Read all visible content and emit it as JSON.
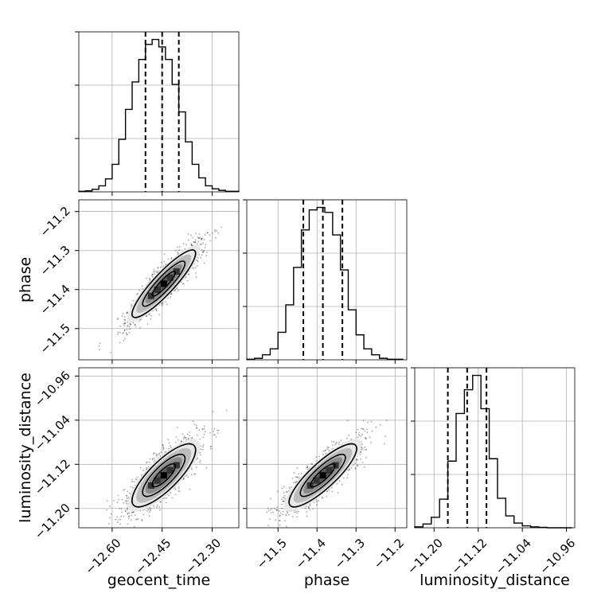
{
  "chart_data": {
    "type": "corner",
    "grid": true,
    "parameters": [
      {
        "name": "geocent_time",
        "range": [
          -12.7,
          -12.22
        ],
        "ticks": [
          -12.6,
          -12.45,
          -12.3
        ],
        "tick_labels": [
          "−12.60",
          "−12.45",
          "−12.30"
        ],
        "mean": -12.445,
        "sigma": 0.055
      },
      {
        "name": "phase",
        "range": [
          -11.58,
          -11.17
        ],
        "ticks": [
          -11.5,
          -11.4,
          -11.3,
          -11.2
        ],
        "tick_labels": [
          "−11.5",
          "−11.4",
          "−11.3",
          "−11.2"
        ],
        "mean": -11.385,
        "sigma": 0.05
      },
      {
        "name": "luminosity_distance",
        "range": [
          -11.235,
          -10.945
        ],
        "ticks": [
          -11.2,
          -11.12,
          -11.04,
          -10.96
        ],
        "tick_labels": [
          "−11.20",
          "−11.12",
          "−11.04",
          "−10.96"
        ],
        "mean": -11.14,
        "sigma": 0.033
      }
    ],
    "histograms": [
      {
        "parameter": "geocent_time",
        "bin_edges": [
          -12.7,
          -12.68,
          -12.66,
          -12.64,
          -12.62,
          -12.6,
          -12.58,
          -12.56,
          -12.54,
          -12.52,
          -12.5,
          -12.48,
          -12.46,
          -12.44,
          -12.42,
          -12.4,
          -12.38,
          -12.36,
          -12.34,
          -12.32,
          -12.3,
          -12.28,
          -12.26,
          -12.24,
          -12.22
        ],
        "counts": [
          1,
          2,
          5,
          12,
          26,
          55,
          105,
          165,
          220,
          265,
          295,
          305,
          290,
          265,
          215,
          160,
          100,
          55,
          28,
          12,
          6,
          3,
          1,
          1
        ],
        "quantiles": [
          -12.5,
          -12.45,
          -12.4
        ]
      },
      {
        "parameter": "phase",
        "bin_edges": [
          -11.58,
          -11.56,
          -11.54,
          -11.52,
          -11.5,
          -11.48,
          -11.46,
          -11.44,
          -11.42,
          -11.4,
          -11.38,
          -11.36,
          -11.34,
          -11.32,
          -11.3,
          -11.28,
          -11.26,
          -11.24,
          -11.22,
          -11.2,
          -11.18
        ],
        "counts": [
          1,
          3,
          10,
          22,
          55,
          110,
          185,
          260,
          300,
          305,
          295,
          250,
          180,
          100,
          50,
          22,
          10,
          3,
          1,
          1
        ],
        "quantiles": [
          -11.435,
          -11.385,
          -11.335
        ]
      },
      {
        "parameter": "luminosity_distance",
        "bin_edges": [
          -11.235,
          -11.22,
          -11.205,
          -11.19,
          -11.175,
          -11.16,
          -11.145,
          -11.13,
          -11.115,
          -11.1,
          -11.085,
          -11.07,
          -11.055,
          -11.04,
          -11.025,
          -11.01,
          -10.995,
          -10.98,
          -10.965,
          -10.95
        ],
        "counts": [
          2,
          8,
          22,
          60,
          140,
          240,
          290,
          320,
          250,
          145,
          62,
          25,
          10,
          4,
          2,
          1,
          0,
          0,
          0
        ],
        "quantiles": [
          -11.175,
          -11.14,
          -11.105
        ]
      }
    ],
    "pairs": [
      {
        "x": "geocent_time",
        "y": "phase",
        "correlation": 0.9
      },
      {
        "x": "geocent_time",
        "y": "luminosity_distance",
        "correlation": 0.8
      },
      {
        "x": "phase",
        "y": "luminosity_distance",
        "correlation": 0.85
      }
    ],
    "contour_levels_sigma": [
      0.5,
      1.0,
      1.5,
      2.0
    ]
  }
}
